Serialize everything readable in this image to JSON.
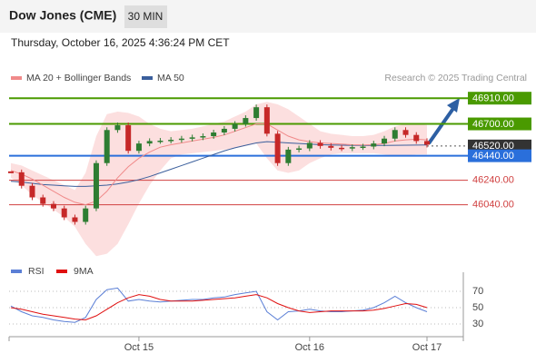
{
  "header": {
    "title": "Dow Jones (CME)",
    "interval": "30 MIN",
    "datetime": "Thursday, October 16, 2025 4:36:24 PM CET"
  },
  "chart_data": {
    "type": "candlestick",
    "legend": [
      {
        "name": "MA 20 + Bollinger Bands",
        "color": "#f08a8a"
      },
      {
        "name": "MA 50",
        "color": "#3b5f9c"
      }
    ],
    "credit": "Research © 2025 Trading Central",
    "ylim": [
      45600,
      47230
    ],
    "xlim": [
      0,
      39
    ],
    "xticks": [
      {
        "value": 12,
        "label": "Oct 15"
      },
      {
        "value": 28,
        "label": "Oct 16"
      },
      {
        "value": 39,
        "label": "Oct 17"
      }
    ],
    "up_color": "#2e7d32",
    "down_color": "#c62828",
    "series": [
      {
        "name": "Price",
        "values": [
          46305,
          46195,
          46100,
          46047,
          46010,
          45937,
          45900,
          46010,
          46380,
          46650,
          46689,
          46480,
          46540,
          46560,
          46563,
          46570,
          46580,
          46590,
          46600,
          46630,
          46660,
          46700,
          46748,
          46836,
          46620,
          46380,
          46490,
          46500,
          46545,
          46520,
          46505,
          46500,
          46510,
          46515,
          46540,
          46580,
          46650,
          46610,
          46560,
          46530
        ]
      },
      {
        "name": "MA 50",
        "color": "#3b5f9c",
        "values": [
          46232,
          46225,
          46215,
          46205,
          46200,
          46195,
          46190,
          46190,
          46195,
          46200,
          46210,
          46225,
          46245,
          46270,
          46300,
          46330,
          46360,
          46390,
          46420,
          46450,
          46480,
          46505,
          46525,
          46545,
          46555,
          46550,
          46545,
          46540,
          46535,
          46530,
          46528,
          46526,
          46525,
          46524,
          46524,
          46524,
          46525,
          46526,
          46527,
          46528
        ]
      },
      {
        "name": "MA 20",
        "color": "#f08a8a",
        "values": [
          46320,
          46290,
          46250,
          46200,
          46150,
          46100,
          46060,
          46040,
          46070,
          46150,
          46260,
          46350,
          46420,
          46470,
          46510,
          46530,
          46545,
          46560,
          46575,
          46590,
          46610,
          46640,
          46670,
          46700,
          46700,
          46650,
          46600,
          46570,
          46555,
          46545,
          46540,
          46535,
          46530,
          46528,
          46530,
          46540,
          46560,
          46570,
          46575,
          46570
        ]
      }
    ],
    "bollinger": {
      "color": "#fcd9d9",
      "upper": [
        46380,
        46360,
        46320,
        46280,
        46240,
        46200,
        46160,
        46300,
        46600,
        46780,
        46800,
        46790,
        46760,
        46700,
        46660,
        46640,
        46650,
        46660,
        46680,
        46700,
        46720,
        46760,
        46800,
        46860,
        46880,
        46860,
        46820,
        46760,
        46700,
        46640,
        46620,
        46610,
        46600,
        46600,
        46610,
        46640,
        46680,
        46700,
        46700,
        46690
      ],
      "lower": [
        46260,
        46200,
        46120,
        46060,
        46000,
        45940,
        45860,
        45720,
        45620,
        45640,
        45720,
        45880,
        46050,
        46200,
        46320,
        46420,
        46450,
        46460,
        46470,
        46480,
        46490,
        46500,
        46520,
        46540,
        46420,
        46320,
        46300,
        46320,
        46380,
        46420,
        46450,
        46460,
        46460,
        46460,
        46460,
        46450,
        46440,
        46440,
        46450,
        46450
      ]
    },
    "levels": [
      {
        "value": 46910,
        "label": "46910.00",
        "color": "#4a9a00",
        "style": "box"
      },
      {
        "value": 46700,
        "label": "46700.00",
        "color": "#4a9a00",
        "style": "box"
      },
      {
        "value": 46520,
        "label": "46520.00",
        "color": "#333333",
        "style": "dotted"
      },
      {
        "value": 46440,
        "label": "46440.00",
        "color": "#2a6fdb",
        "style": "box"
      },
      {
        "value": 46240,
        "label": "46240.00",
        "color": "#d04040",
        "style": "text"
      },
      {
        "value": 46040,
        "label": "46040.00",
        "color": "#d04040",
        "style": "text"
      }
    ],
    "rsi": {
      "ylim": [
        15,
        95
      ],
      "yticks": [
        70,
        50,
        30
      ],
      "series": [
        {
          "name": "RSI",
          "color": "#5b7fd6",
          "values": [
            52,
            45,
            40,
            38,
            35,
            33,
            32,
            38,
            60,
            72,
            74,
            58,
            60,
            58,
            57,
            58,
            59,
            60,
            60,
            62,
            63,
            66,
            68,
            70,
            45,
            35,
            45,
            46,
            48,
            46,
            45,
            45,
            46,
            47,
            50,
            56,
            64,
            56,
            50,
            45
          ]
        },
        {
          "name": "9MA",
          "color": "#e01010",
          "values": [
            50,
            48,
            45,
            42,
            40,
            38,
            36,
            35,
            40,
            48,
            56,
            62,
            66,
            64,
            60,
            58,
            58,
            58,
            59,
            60,
            61,
            62,
            64,
            66,
            62,
            55,
            50,
            46,
            44,
            45,
            46,
            46,
            46,
            46,
            47,
            49,
            52,
            55,
            54,
            50
          ]
        }
      ]
    }
  }
}
